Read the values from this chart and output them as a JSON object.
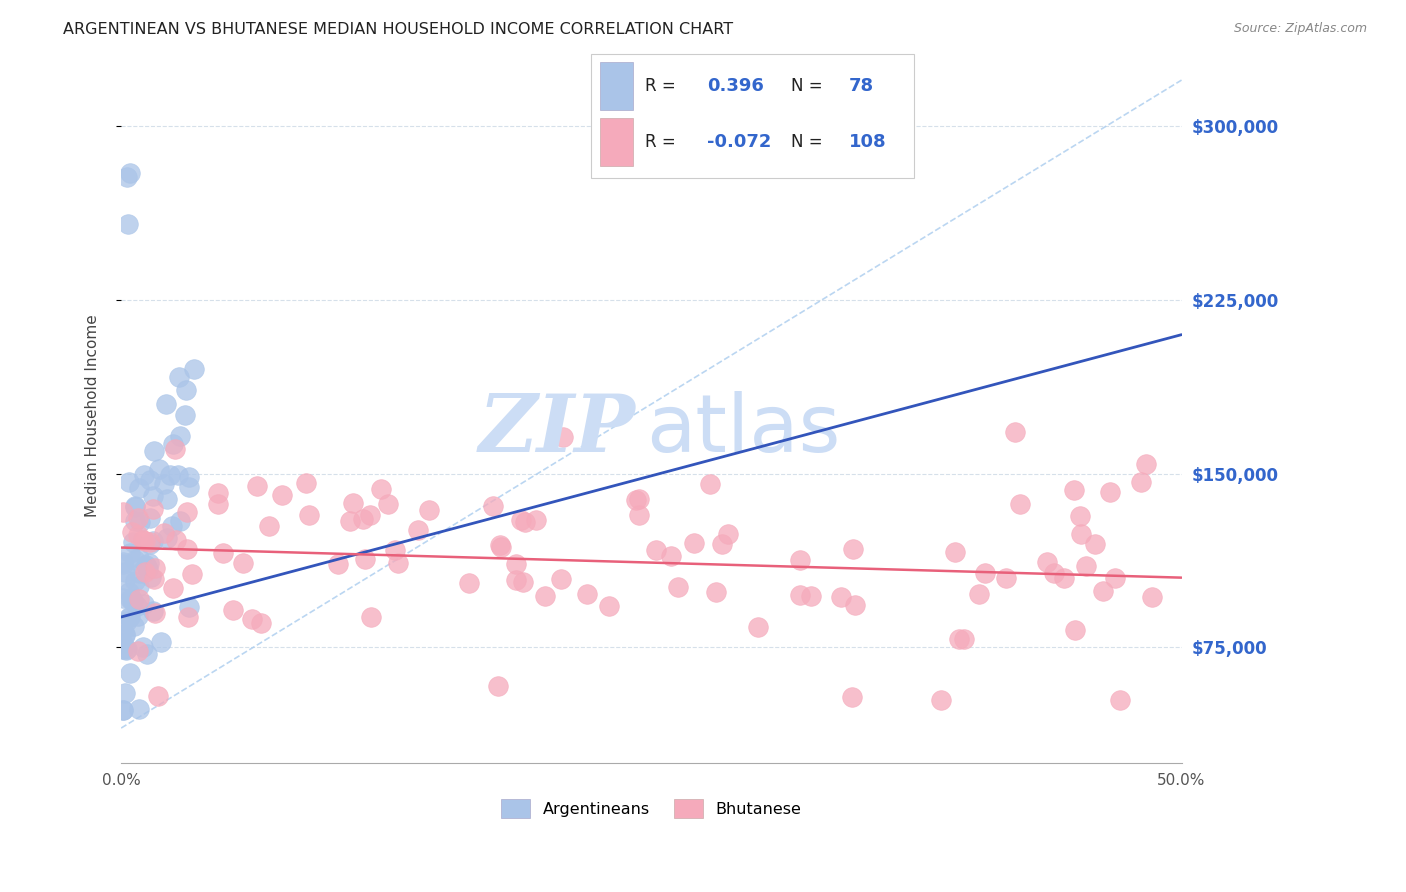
{
  "title": "ARGENTINEAN VS BHUTANESE MEDIAN HOUSEHOLD INCOME CORRELATION CHART",
  "source": "Source: ZipAtlas.com",
  "ylabel": "Median Household Income",
  "yticks": [
    75000,
    150000,
    225000,
    300000
  ],
  "ytick_labels": [
    "$75,000",
    "$150,000",
    "$225,000",
    "$300,000"
  ],
  "xlim": [
    0.0,
    0.5
  ],
  "ylim": [
    25000,
    325000
  ],
  "legend_r_arg": "0.396",
  "legend_n_arg": "78",
  "legend_r_bhu": "-0.072",
  "legend_n_bhu": "108",
  "color_arg": "#aac4e8",
  "color_bhu": "#f5aabb",
  "color_arg_line": "#3355bb",
  "color_bhu_line": "#e8607a",
  "color_dashed": "#aaccee",
  "watermark_zip_color": "#ccddf5",
  "watermark_atlas_color": "#ccddf5",
  "arg_line_x": [
    0.0,
    0.5
  ],
  "arg_line_y": [
    88000,
    210000
  ],
  "bhu_line_x": [
    0.0,
    0.5
  ],
  "bhu_line_y": [
    118000,
    105000
  ],
  "dash_line_x": [
    0.0,
    0.5
  ],
  "dash_line_y": [
    40000,
    320000
  ]
}
